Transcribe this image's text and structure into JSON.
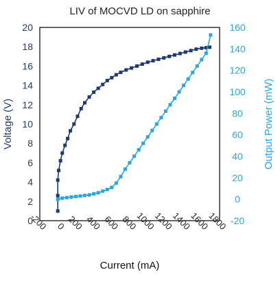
{
  "chart_data": {
    "type": "line",
    "title": "LIV of MOCVD LD on sapphire",
    "xlabel": "Current (mA)",
    "ylabel_left": "Voltage (V)",
    "ylabel_right": "Output Power (mW)",
    "xlim": [
      -200,
      1800
    ],
    "ylim_left": [
      0,
      20
    ],
    "ylim_right": [
      -20,
      160
    ],
    "x_ticks": [
      "-200",
      "0",
      "200",
      "400",
      "600",
      "800",
      "1000",
      "1200",
      "1400",
      "1600",
      "1800"
    ],
    "y_left_ticks": [
      "0",
      "2",
      "4",
      "6",
      "8",
      "10",
      "12",
      "14",
      "16",
      "18",
      "20"
    ],
    "y_right_ticks": [
      "-20",
      "0",
      "20",
      "40",
      "60",
      "80",
      "100",
      "120",
      "140",
      "160"
    ],
    "grid": false,
    "legend": "none",
    "colors": {
      "voltage": "#1f3a6e",
      "power": "#2ba6e0",
      "axis_left": "#1f3a6e",
      "axis_right": "#2ba6e0"
    },
    "series": [
      {
        "axis": "left",
        "x": [
          0,
          0,
          0,
          10,
          30,
          50,
          80,
          110,
          140,
          180,
          220,
          260,
          300,
          350,
          400,
          450,
          500,
          550,
          600,
          650,
          700,
          760,
          820,
          880,
          940,
          1000,
          1060,
          1120,
          1180,
          1240,
          1300,
          1360,
          1420,
          1480,
          1540,
          1600,
          1650,
          1690
        ],
        "values": [
          1.0,
          2.6,
          4.2,
          5.2,
          6.2,
          7.0,
          7.8,
          8.5,
          9.3,
          10.0,
          10.8,
          11.6,
          12.2,
          12.8,
          13.3,
          13.7,
          14.1,
          14.5,
          14.8,
          15.1,
          15.35,
          15.6,
          15.8,
          16.0,
          16.2,
          16.4,
          16.55,
          16.7,
          16.85,
          17.0,
          17.15,
          17.3,
          17.45,
          17.6,
          17.75,
          17.85,
          17.9,
          17.95
        ]
      },
      {
        "axis": "right",
        "x": [
          0,
          50,
          100,
          150,
          200,
          250,
          300,
          350,
          400,
          450,
          500,
          550,
          600,
          650,
          700,
          750,
          800,
          850,
          900,
          950,
          1000,
          1050,
          1100,
          1150,
          1200,
          1250,
          1300,
          1350,
          1400,
          1450,
          1500,
          1550,
          1600,
          1650,
          1700
        ],
        "values": [
          0,
          1,
          1.5,
          2,
          2.5,
          3,
          3.5,
          4,
          5,
          6,
          7.5,
          9,
          11,
          15,
          21,
          28,
          34,
          40,
          46,
          52,
          58,
          64,
          70,
          76,
          82,
          88,
          94,
          100,
          106,
          112,
          118,
          124,
          130,
          136,
          153
        ]
      }
    ]
  }
}
